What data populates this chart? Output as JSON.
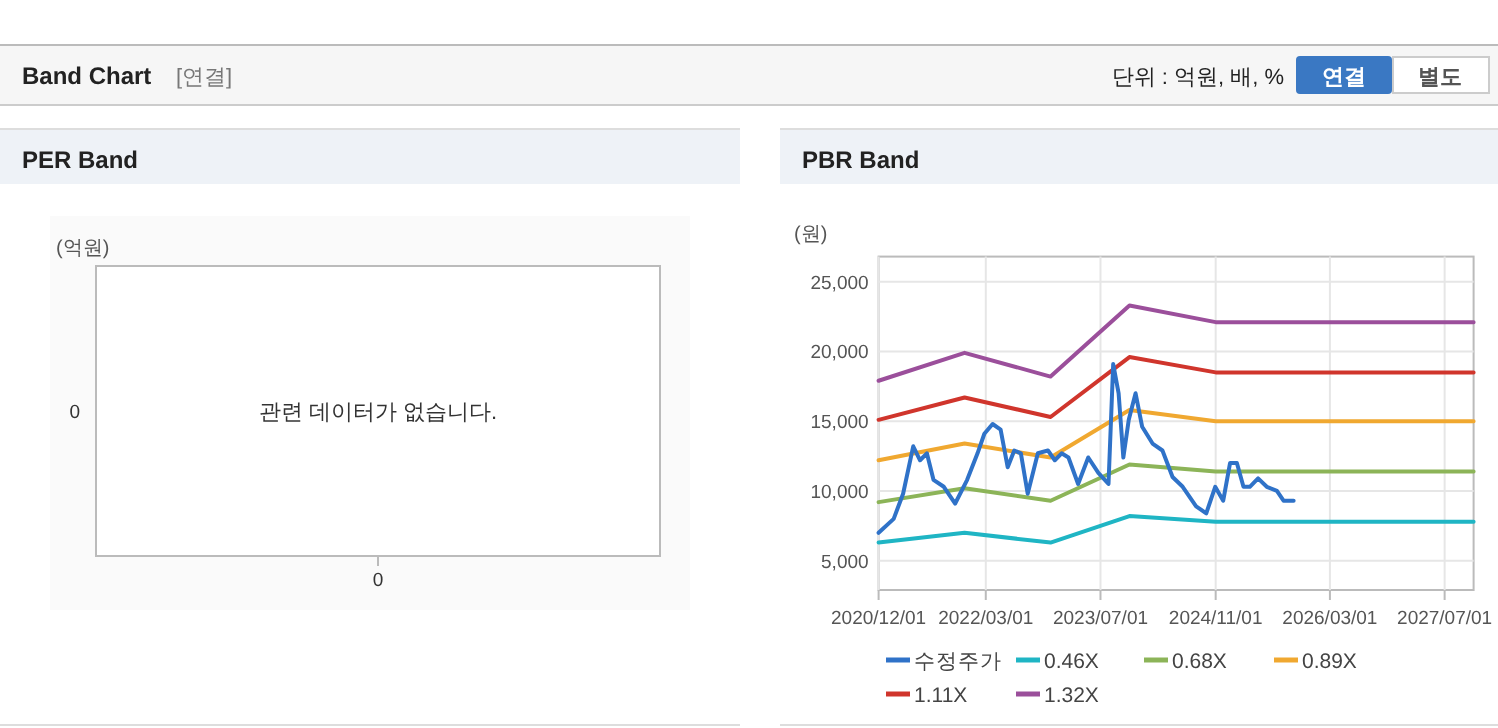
{
  "chart_data": [
    {
      "type": "other",
      "title": "Band Chart",
      "annotations": [
        "[연결]",
        "단위 : 억원, 배, %",
        "연결",
        "별도"
      ]
    },
    {
      "type": "other",
      "title": "PER Band",
      "ylabel": "(억원)",
      "annotations": [
        "관련 데이터가 없습니다.",
        "0",
        "0"
      ]
    },
    {
      "type": "line",
      "title": "PBR Band",
      "ylabel": "(원)",
      "xlim": [
        "2020-12-01",
        "2027-11-01"
      ],
      "xticks": [
        {
          "value": "2020-12-01",
          "label": "2020/12/01"
        },
        {
          "value": "2022-03-01",
          "label": "2022/03/01"
        },
        {
          "value": "2023-07-01",
          "label": "2023/07/01"
        },
        {
          "value": "2024-11-01",
          "label": "2024/11/01"
        },
        {
          "value": "2026-03-01",
          "label": "2026/03/01"
        },
        {
          "value": "2027-07-01",
          "label": "2027/07/01"
        }
      ],
      "ylim": [
        2900,
        26800
      ],
      "yticks": [
        {
          "value": 5000,
          "label": "5,000"
        },
        {
          "value": 10000,
          "label": "10,000"
        },
        {
          "value": 15000,
          "label": "15,000"
        },
        {
          "value": 20000,
          "label": "20,000"
        },
        {
          "value": 25000,
          "label": "25,000"
        }
      ],
      "grid": true,
      "legend": "bottom",
      "series": [
        {
          "name": "수정주가",
          "color": "#2f72c8",
          "x": [
            "2020-12-01",
            "2021-02-03",
            "2021-03-15",
            "2021-04-27",
            "2021-05-26",
            "2021-06-24",
            "2021-07-22",
            "2021-09-04",
            "2021-10-22",
            "2021-12-12",
            "2022-01-25",
            "2022-02-23",
            "2022-03-30",
            "2022-05-03",
            "2022-06-02",
            "2022-06-30",
            "2022-07-28",
            "2022-08-26",
            "2022-10-08",
            "2022-11-20",
            "2022-12-19",
            "2023-01-17",
            "2023-02-15",
            "2023-03-28",
            "2023-05-10",
            "2023-06-22",
            "2023-08-04",
            "2023-08-24",
            "2023-09-16",
            "2023-10-06",
            "2023-10-29",
            "2023-11-27",
            "2023-12-25",
            "2024-02-07",
            "2024-03-20",
            "2024-05-02",
            "2024-06-14",
            "2024-08-10",
            "2024-09-22",
            "2024-10-30",
            "2024-12-03",
            "2025-01-01",
            "2025-01-30",
            "2025-02-27",
            "2025-03-26",
            "2025-04-30",
            "2025-06-06",
            "2025-07-19",
            "2025-08-16",
            "2025-09-28"
          ],
          "values": [
            7000,
            8000,
            9800,
            13200,
            12200,
            12700,
            10800,
            10300,
            9100,
            10800,
            12700,
            14100,
            14800,
            14400,
            11700,
            12900,
            12700,
            9800,
            12700,
            12900,
            12200,
            12700,
            12400,
            10500,
            12400,
            11300,
            10500,
            19100,
            17000,
            12400,
            15100,
            17000,
            14600,
            13400,
            12900,
            11000,
            10300,
            8900,
            8400,
            10300,
            9300,
            12000,
            12000,
            10300,
            10300,
            10900,
            10300,
            10000,
            9300,
            9300
          ]
        },
        {
          "name": "0.46X",
          "color": "#1fb5c4",
          "x": [
            "2020-12-01",
            "2021-12-01",
            "2022-12-01",
            "2023-11-01",
            "2024-11-01",
            "2027-11-01"
          ],
          "values": [
            6300,
            7000,
            6300,
            8200,
            7800,
            7800
          ]
        },
        {
          "name": "0.68X",
          "color": "#8cb458",
          "x": [
            "2020-12-01",
            "2021-12-01",
            "2022-12-01",
            "2023-11-01",
            "2024-11-01",
            "2027-11-01"
          ],
          "values": [
            9200,
            10200,
            9300,
            11900,
            11400,
            11400
          ]
        },
        {
          "name": "0.89X",
          "color": "#f0a830",
          "x": [
            "2020-12-01",
            "2021-12-01",
            "2022-12-01",
            "2023-11-01",
            "2024-11-01",
            "2027-11-01"
          ],
          "values": [
            12200,
            13400,
            12400,
            15800,
            15000,
            15000
          ]
        },
        {
          "name": "1.11X",
          "color": "#d0352c",
          "x": [
            "2020-12-01",
            "2021-12-01",
            "2022-12-01",
            "2023-11-01",
            "2024-11-01",
            "2027-11-01"
          ],
          "values": [
            15100,
            16700,
            15300,
            19600,
            18500,
            18500
          ]
        },
        {
          "name": "1.32X",
          "color": "#9b4f9b",
          "x": [
            "2020-12-01",
            "2021-12-01",
            "2022-12-01",
            "2023-11-01",
            "2024-11-01",
            "2027-11-01"
          ],
          "values": [
            17900,
            19900,
            18200,
            23300,
            22100,
            22100
          ]
        }
      ]
    }
  ]
}
